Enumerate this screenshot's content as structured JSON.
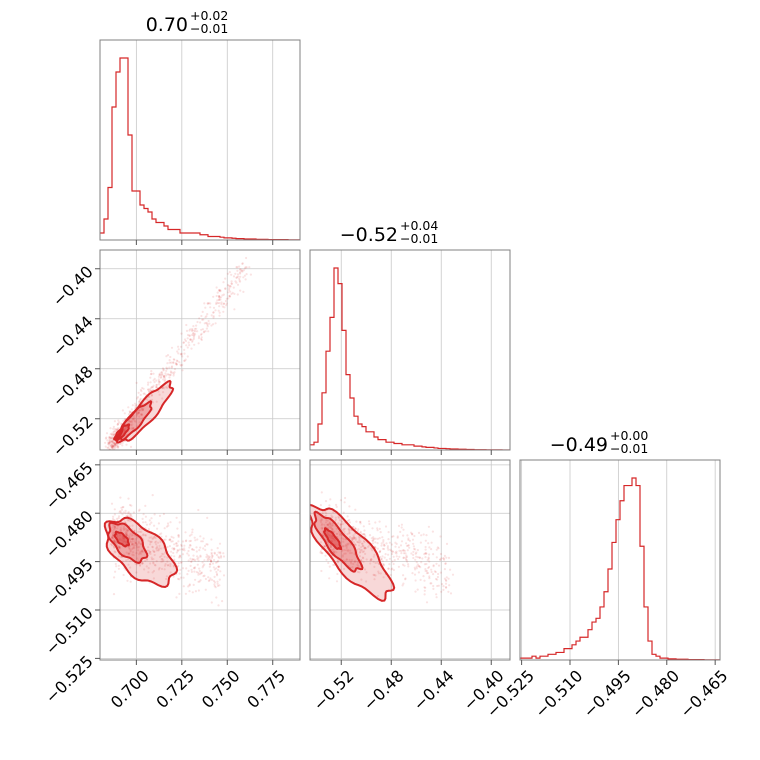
{
  "chart_data": {
    "type": "corner",
    "color": "#d62728",
    "parameters": [
      {
        "title": "0.70",
        "sup": "+0.02",
        "sub": "−0.01",
        "range": [
          0.68,
          0.79
        ],
        "hist_mode": 0.693,
        "ticks": [
          {
            "v": 0.7,
            "label": "0.700"
          },
          {
            "v": 0.725,
            "label": "0.725"
          },
          {
            "v": 0.75,
            "label": "0.750"
          },
          {
            "v": 0.775,
            "label": "0.775"
          }
        ]
      },
      {
        "title": "−0.52",
        "sup": "+0.04",
        "sub": "−0.01",
        "range": [
          -0.545,
          -0.385
        ],
        "hist_mode": -0.526,
        "ticks": [
          {
            "v": -0.52,
            "label": "−0.52"
          },
          {
            "v": -0.48,
            "label": "−0.48"
          },
          {
            "v": -0.44,
            "label": "−0.44"
          },
          {
            "v": -0.4,
            "label": "−0.40"
          }
        ]
      },
      {
        "title": "−0.49",
        "sup": "+0.00",
        "sub": "−0.01",
        "range": [
          -0.5255,
          -0.4635
        ],
        "hist_mode": -0.4915,
        "ticks": [
          {
            "v": -0.525,
            "label": "−0.525"
          },
          {
            "v": -0.51,
            "label": "−0.510"
          },
          {
            "v": -0.495,
            "label": "−0.495"
          },
          {
            "v": -0.48,
            "label": "−0.480"
          },
          {
            "v": -0.465,
            "label": "−0.465"
          }
        ]
      }
    ],
    "histograms": [
      {
        "param": 0,
        "bin_start": 0.68,
        "bin_width": 0.0022,
        "counts": [
          2,
          6,
          15,
          38,
          48,
          52,
          52,
          30,
          14,
          14,
          10,
          9,
          8,
          6,
          5,
          5,
          4,
          3,
          3,
          3,
          2,
          2,
          2,
          2,
          2,
          1.5,
          1.5,
          1,
          1,
          1,
          0.8,
          0.6,
          0.6,
          0.5,
          0.4,
          0.4,
          0.3,
          0.3,
          0.3,
          0.2,
          0.2,
          0.2,
          0.1,
          0.1,
          0.1,
          0.1,
          0.1,
          0.05,
          0.05,
          0.05
        ]
      },
      {
        "param": 1,
        "bin_start": -0.545,
        "bin_width": 0.0032,
        "counts": [
          2,
          3,
          10,
          22,
          38,
          51,
          70,
          64,
          46,
          29,
          20,
          13,
          10,
          9,
          7,
          7,
          5,
          4,
          4,
          3,
          3,
          2.5,
          2.5,
          2,
          2,
          2,
          1.5,
          1.5,
          1.2,
          1,
          1,
          0.8,
          0.6,
          0.6,
          0.5,
          0.4,
          0.4,
          0.3,
          0.3,
          0.2,
          0.2,
          0.1,
          0.1,
          0.1,
          0.05,
          0.05,
          0.05,
          0.05,
          0.02,
          0.02
        ]
      },
      {
        "param": 2,
        "bin_start": -0.5255,
        "bin_width": 0.00124,
        "counts": [
          0.5,
          0.5,
          0.5,
          1,
          0.5,
          1,
          1,
          1.5,
          1.5,
          2,
          2,
          3,
          3,
          4,
          5,
          6,
          6,
          8,
          10,
          11,
          14,
          18,
          24,
          31,
          37,
          42,
          46,
          46,
          48,
          46,
          30,
          14,
          5,
          1.5,
          1,
          0.5,
          0.5,
          0.3,
          0.3,
          0.2,
          0.2,
          0.2,
          0.1,
          0.1,
          0.1,
          0.1,
          0.05,
          0.05,
          0.05,
          0.05
        ]
      }
    ],
    "pairs": [
      {
        "x_param": 0,
        "y_param": 1,
        "correlation": 0.97
      },
      {
        "x_param": 0,
        "y_param": 2,
        "correlation": -0.45
      },
      {
        "x_param": 1,
        "y_param": 2,
        "correlation": -0.48
      }
    ],
    "samples": 700
  }
}
